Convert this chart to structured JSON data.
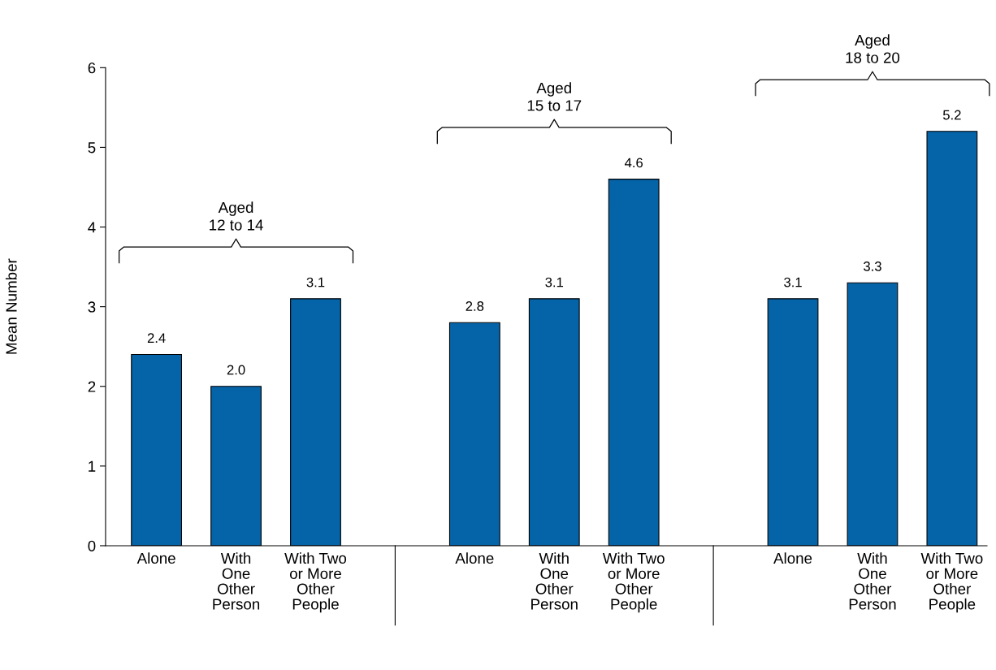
{
  "chart_data": {
    "type": "bar",
    "ylabel": "Mean Number",
    "categories": [
      "Alone",
      "With\nOne\nOther\nPerson",
      "With Two\nor More\nOther\nPeople",
      null,
      "Alone",
      "With\nOne\nOther\nPerson",
      "With Two\nor More\nOther\nPeople",
      null,
      "Alone",
      "With\nOne\nOther\nPerson",
      "With Two\nor More\nOther\nPeople"
    ],
    "values": [
      2.4,
      2.0,
      3.1,
      null,
      2.8,
      3.1,
      4.6,
      null,
      3.1,
      3.3,
      5.2
    ],
    "value_labels": [
      "2.4",
      "2.0",
      "3.1",
      null,
      "2.8",
      "3.1",
      "4.6",
      null,
      "3.1",
      "3.3",
      "5.2"
    ],
    "color": "#0563a8",
    "ylim": [
      0,
      6
    ],
    "yticks": [
      0,
      1,
      2,
      3,
      4,
      5,
      6
    ],
    "grid": false,
    "legend": false,
    "annotations": [
      "Aged\n12 to 14",
      "Aged\n15 to 17",
      "Aged\n18 to 20"
    ]
  }
}
